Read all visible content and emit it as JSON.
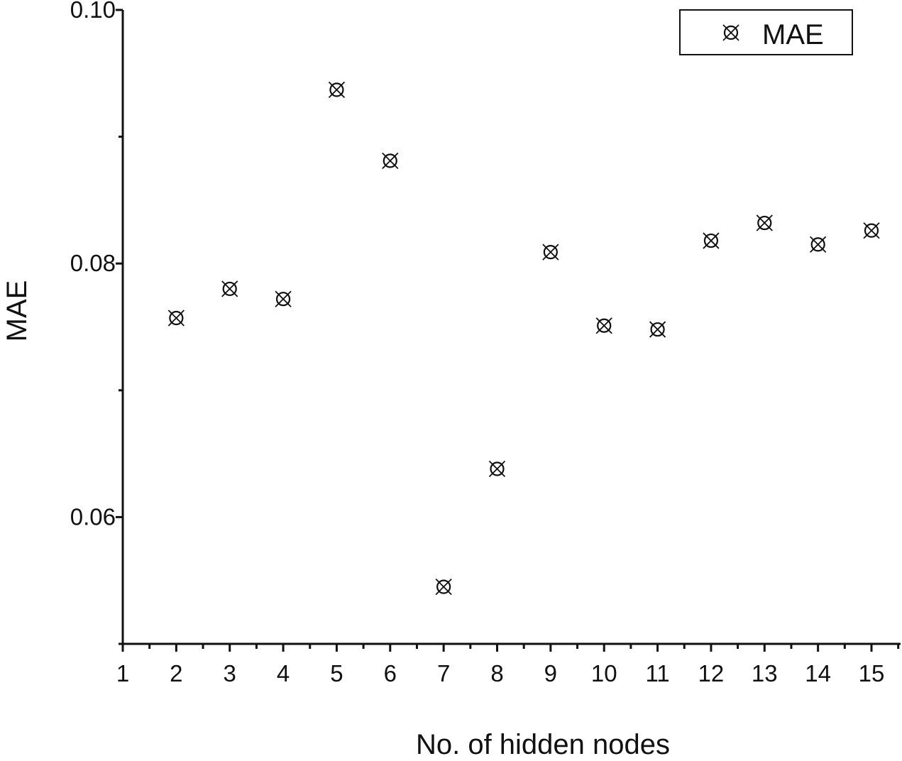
{
  "chart_data": {
    "type": "scatter",
    "title": "",
    "xlabel": "No. of hidden nodes",
    "ylabel": "MAE",
    "xlim": [
      1,
      15.5
    ],
    "ylim": [
      0.05,
      0.1
    ],
    "x_ticks": [
      1,
      2,
      3,
      4,
      5,
      6,
      7,
      8,
      9,
      10,
      11,
      12,
      13,
      14,
      15
    ],
    "x_tick_labels": [
      "1",
      "2",
      "3",
      "4",
      "5",
      "6",
      "7",
      "8",
      "9",
      "10",
      "11",
      "12",
      "13",
      "14",
      "15"
    ],
    "x_minor_step": 0.5,
    "y_ticks": [
      0.06,
      0.08,
      0.1
    ],
    "y_tick_labels": [
      "0.06",
      "0.08",
      "0.10"
    ],
    "y_minor_ticks": [
      0.05,
      0.07,
      0.09
    ],
    "grid": false,
    "legend": {
      "position": "top-right",
      "entries": [
        "MAE"
      ]
    },
    "marker": "circle-x",
    "series": [
      {
        "name": "MAE",
        "x": [
          2,
          3,
          4,
          5,
          6,
          7,
          8,
          9,
          10,
          11,
          12,
          13,
          14,
          15
        ],
        "y": [
          0.0757,
          0.078,
          0.0772,
          0.0937,
          0.0881,
          0.0545,
          0.0638,
          0.0809,
          0.0751,
          0.0748,
          0.0818,
          0.0832,
          0.0815,
          0.0826
        ]
      }
    ]
  }
}
